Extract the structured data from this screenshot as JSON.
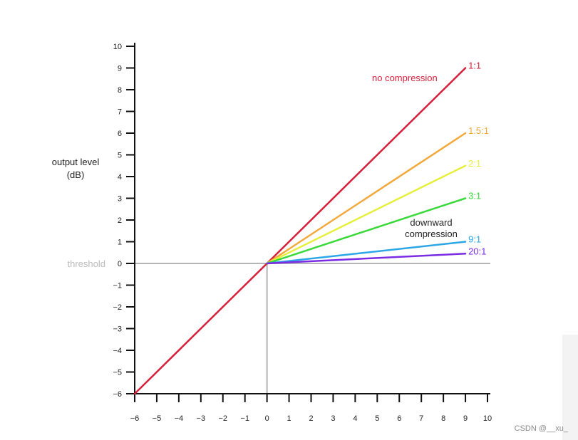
{
  "chart_data": {
    "type": "line",
    "ylabel": [
      "output level",
      "(dB)"
    ],
    "xlim": [
      -6,
      10
    ],
    "ylim": [
      -6,
      10
    ],
    "x_ticks": [
      "−6",
      "−5",
      "−4",
      "−3",
      "−2",
      "−1",
      "0",
      "1",
      "2",
      "3",
      "4",
      "5",
      "6",
      "7",
      "8",
      "9",
      "10"
    ],
    "y_ticks": [
      "−6",
      "−5",
      "−4",
      "−3",
      "−2",
      "−1",
      "0",
      "1",
      "2",
      "3",
      "4",
      "5",
      "6",
      "7",
      "8",
      "9",
      "10"
    ],
    "threshold": {
      "label": "threshold",
      "value": 0,
      "color": "#b5b5b5"
    },
    "series": [
      {
        "name": "1:1",
        "color": "#d61f3a",
        "points": [
          [
            -6,
            -6
          ],
          [
            9,
            9
          ]
        ]
      },
      {
        "name": "1.5:1",
        "color": "#f2a83a",
        "points": [
          [
            0,
            0
          ],
          [
            9,
            6
          ]
        ]
      },
      {
        "name": "2:1",
        "color": "#e6ef3c",
        "points": [
          [
            0,
            0
          ],
          [
            9,
            4.5
          ]
        ]
      },
      {
        "name": "3:1",
        "color": "#39d93a",
        "points": [
          [
            0,
            0
          ],
          [
            9,
            3
          ]
        ]
      },
      {
        "name": "9:1",
        "color": "#2da6e8",
        "points": [
          [
            0,
            0
          ],
          [
            9,
            1
          ]
        ]
      },
      {
        "name": "20:1",
        "color": "#7a2be3",
        "points": [
          [
            0,
            0
          ],
          [
            9,
            0.45
          ]
        ]
      }
    ],
    "annotations": [
      {
        "text": "no compression",
        "color": "#d61f3a"
      },
      {
        "text": "downward",
        "color": "#222222"
      },
      {
        "text": "compression",
        "color": "#222222"
      }
    ]
  },
  "watermark": "CSDN @__xu_"
}
